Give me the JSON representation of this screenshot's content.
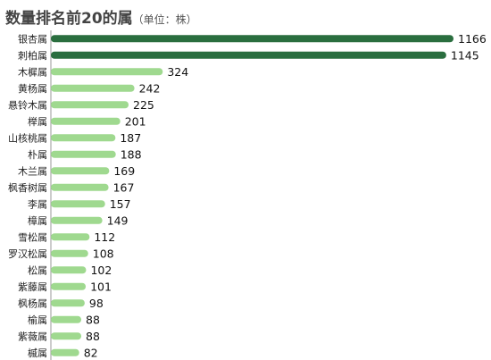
{
  "title": "数量排名前20的属",
  "unit": "（单位：株）",
  "colors": {
    "dark": "#2a6e3f",
    "light": "#9fd98f",
    "axis": "#9a9a9a"
  },
  "chart_data": {
    "type": "bar",
    "orientation": "horizontal",
    "title": "数量排名前20的属",
    "categories": [
      "银杏属",
      "刺柏属",
      "木樨属",
      "黄杨属",
      "悬铃木属",
      "榉属",
      "山核桃属",
      "朴属",
      "木兰属",
      "枫香树属",
      "李属",
      "樟属",
      "雪松属",
      "罗汉松属",
      "松属",
      "紫藤属",
      "枫杨属",
      "榆属",
      "紫薇属",
      "槭属"
    ],
    "values": [
      1166,
      1145,
      324,
      242,
      225,
      201,
      187,
      188,
      169,
      167,
      157,
      149,
      112,
      108,
      102,
      101,
      98,
      88,
      88,
      82
    ],
    "xlim": [
      0,
      1166
    ],
    "grid": false,
    "legend": "none"
  }
}
